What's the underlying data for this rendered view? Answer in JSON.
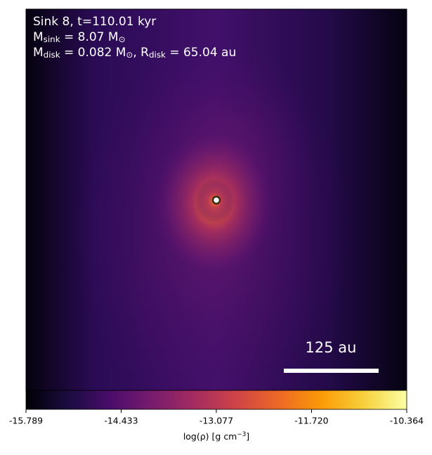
{
  "chart_data": {
    "type": "image",
    "annotations": [
      [
        {
          "text": "Sink 8, t=110.01 kyr"
        }
      ],
      [
        {
          "text": "M"
        },
        {
          "text": "sink",
          "sub": true
        },
        {
          "text": " = 8.07 M"
        },
        {
          "text": "⊙",
          "sub": true
        }
      ],
      [
        {
          "text": "M"
        },
        {
          "text": "disk",
          "sub": true
        },
        {
          "text": " = 0.082 M"
        },
        {
          "text": "⊙",
          "sub": true
        },
        {
          "text": ", R"
        },
        {
          "text": "disk",
          "sub": true
        },
        {
          "text": " = 65.04 au"
        }
      ]
    ],
    "scale_bar": "125 au",
    "colorbar": {
      "label": [
        {
          "text": "log(ρ) [g cm"
        },
        {
          "text": "−3",
          "sup": true
        },
        {
          "text": "]"
        }
      ],
      "clim": [
        -15.789,
        -10.364
      ],
      "ticks": [
        -15.789,
        -14.433,
        -13.077,
        {
          "value": -11.72,
          "label": "-11.720"
        },
        -10.364
      ]
    },
    "colormap": [
      "#000004",
      "#1b0c41",
      "#4a0c6b",
      "#781c6d",
      "#a52c60",
      "#cf4446",
      "#ed6925",
      "#fb9b06",
      "#f7d13d",
      "#fcffa4"
    ]
  }
}
